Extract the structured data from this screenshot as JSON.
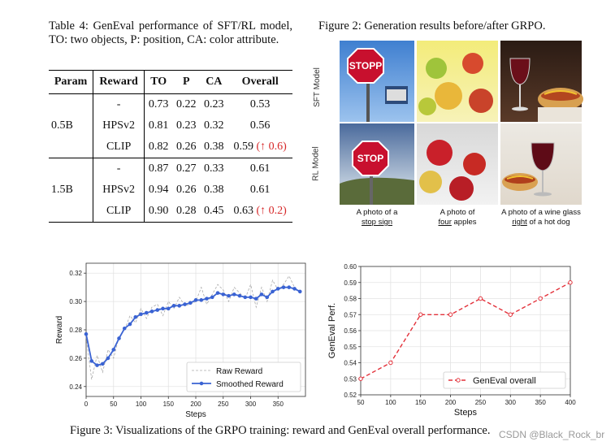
{
  "table": {
    "caption": "Table 4: GenEval performance of SFT/RL model, TO: two objects, P: position, CA: color attribute.",
    "headers": [
      "Param",
      "Reward",
      "TO",
      "P",
      "CA",
      "Overall"
    ],
    "groups": [
      {
        "param": "0.5B",
        "rows": [
          {
            "reward": "-",
            "to": "0.73",
            "p": "0.22",
            "ca": "0.23",
            "overall": "0.53",
            "delta": ""
          },
          {
            "reward": "HPSv2",
            "to": "0.81",
            "p": "0.23",
            "ca": "0.32",
            "overall": "0.56",
            "delta": ""
          },
          {
            "reward": "CLIP",
            "to": "0.82",
            "p": "0.26",
            "ca": "0.38",
            "overall": "0.59",
            "delta": "(↑ 0.6)"
          }
        ]
      },
      {
        "param": "1.5B",
        "rows": [
          {
            "reward": "-",
            "to": "0.87",
            "p": "0.27",
            "ca": "0.33",
            "overall": "0.61",
            "delta": ""
          },
          {
            "reward": "HPSv2",
            "to": "0.94",
            "p": "0.26",
            "ca": "0.38",
            "overall": "0.61",
            "delta": ""
          },
          {
            "reward": "CLIP",
            "to": "0.90",
            "p": "0.28",
            "ca": "0.45",
            "overall": "0.63",
            "delta": "(↑ 0.2)"
          }
        ]
      }
    ]
  },
  "figure2": {
    "caption": "Figure 2: Generation results before/after GRPO.",
    "row_labels": [
      "SFT Model",
      "RL Model"
    ],
    "columns": [
      {
        "prefix": "A photo of a",
        "line2_plain": "",
        "line2_underlined": "stop sign",
        "line2_rest": ""
      },
      {
        "prefix": "A photo of",
        "line2_plain": "",
        "line2_underlined": "four",
        "line2_rest": " apples"
      },
      {
        "prefix": "A photo of a wine glass",
        "line2_plain": "",
        "line2_underlined": "right",
        "line2_rest": " of a hot dog"
      }
    ],
    "sign_text": [
      "STOPP",
      "STOP"
    ]
  },
  "figure3": {
    "caption": "Figure 3: Visualizations of the GRPO training: reward and GenEval overall performance.",
    "watermark": "CSDN @Black_Rock_br"
  },
  "chart_data": [
    {
      "type": "line",
      "xlabel": "Steps",
      "ylabel": "Reward",
      "xlim": [
        0,
        400
      ],
      "ylim": [
        0.233,
        0.327
      ],
      "xticks": [
        0,
        50,
        100,
        150,
        200,
        250,
        300,
        350
      ],
      "yticks": [
        0.24,
        0.26,
        0.28,
        0.3,
        0.32
      ],
      "legend": [
        "Raw Reward",
        "Smoothed Reward"
      ],
      "legend_position": "bottom-right",
      "grid": true,
      "series": [
        {
          "name": "Raw Reward",
          "x": [
            0,
            10,
            20,
            30,
            40,
            50,
            60,
            70,
            80,
            90,
            100,
            110,
            120,
            130,
            140,
            150,
            160,
            170,
            180,
            190,
            200,
            210,
            220,
            230,
            240,
            250,
            260,
            270,
            280,
            290,
            300,
            310,
            320,
            330,
            340,
            350,
            360,
            370,
            380,
            390
          ],
          "values": [
            0.275,
            0.245,
            0.262,
            0.25,
            0.266,
            0.26,
            0.275,
            0.28,
            0.29,
            0.285,
            0.295,
            0.288,
            0.296,
            0.298,
            0.29,
            0.3,
            0.295,
            0.303,
            0.297,
            0.298,
            0.3,
            0.31,
            0.298,
            0.305,
            0.312,
            0.308,
            0.3,
            0.31,
            0.306,
            0.302,
            0.312,
            0.296,
            0.31,
            0.3,
            0.315,
            0.308,
            0.312,
            0.318,
            0.31,
            0.307
          ]
        },
        {
          "name": "Smoothed Reward",
          "x": [
            0,
            10,
            20,
            30,
            40,
            50,
            60,
            70,
            80,
            90,
            100,
            110,
            120,
            130,
            140,
            150,
            160,
            170,
            180,
            190,
            200,
            210,
            220,
            230,
            240,
            250,
            260,
            270,
            280,
            290,
            300,
            310,
            320,
            330,
            340,
            350,
            360,
            370,
            380,
            390
          ],
          "values": [
            0.277,
            0.258,
            0.255,
            0.256,
            0.26,
            0.266,
            0.274,
            0.281,
            0.284,
            0.289,
            0.291,
            0.292,
            0.293,
            0.294,
            0.295,
            0.295,
            0.297,
            0.297,
            0.298,
            0.299,
            0.301,
            0.301,
            0.302,
            0.303,
            0.306,
            0.305,
            0.304,
            0.305,
            0.304,
            0.303,
            0.303,
            0.302,
            0.305,
            0.303,
            0.307,
            0.309,
            0.31,
            0.31,
            0.309,
            0.307
          ]
        }
      ]
    },
    {
      "type": "line",
      "xlabel": "Steps",
      "ylabel": "GenEval Perf.",
      "xlim": [
        50,
        400
      ],
      "ylim": [
        0.52,
        0.6
      ],
      "xticks": [
        50,
        100,
        150,
        200,
        250,
        300,
        350,
        400
      ],
      "yticks": [
        0.52,
        0.53,
        0.54,
        0.55,
        0.56,
        0.57,
        0.58,
        0.59,
        0.6
      ],
      "legend": [
        "GenEval overall"
      ],
      "legend_position": "bottom-right",
      "grid": true,
      "series": [
        {
          "name": "GenEval overall",
          "x": [
            50,
            100,
            150,
            200,
            250,
            300,
            350,
            400
          ],
          "values": [
            0.53,
            0.54,
            0.57,
            0.57,
            0.58,
            0.57,
            0.58,
            0.59
          ]
        }
      ]
    }
  ]
}
